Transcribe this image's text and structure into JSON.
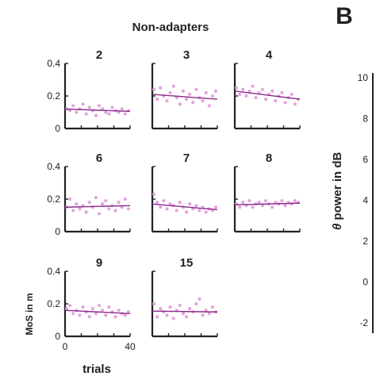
{
  "figure": {
    "title": "Non-adapters",
    "panel_b_letter": "B",
    "panel_b_ylabel_symbol": "θ",
    "panel_b_ylabel": " power in dB",
    "panel_b_ticks": [
      "10",
      "8",
      "6",
      "4",
      "2",
      "0",
      "-2"
    ]
  },
  "colors": {
    "axis": "#222222",
    "point": "#e3a3de",
    "fit_line": "#8b2a8b"
  },
  "chart_data": {
    "type": "scatter",
    "shared": {
      "ylim": [
        0,
        0.4
      ],
      "yticks": [
        0,
        0.2,
        0.4
      ],
      "ytick_labels": [
        "0",
        "0.2",
        "0.4"
      ],
      "xlim": [
        0,
        40
      ],
      "xticks": [
        0,
        40
      ],
      "xtick_labels": [
        "0",
        "40"
      ],
      "xlabel": "trials",
      "ylabel": "MoS in m"
    },
    "panels": [
      {
        "title": "2",
        "fit": [
          0.12,
          0.105
        ],
        "x": [
          1,
          3,
          5,
          7,
          9,
          11,
          13,
          15,
          17,
          19,
          21,
          23,
          25,
          27,
          29,
          31,
          33,
          35,
          37,
          39
        ],
        "y": [
          0.12,
          0.11,
          0.14,
          0.1,
          0.12,
          0.15,
          0.09,
          0.13,
          0.11,
          0.08,
          0.14,
          0.12,
          0.1,
          0.09,
          0.13,
          0.11,
          0.1,
          0.12,
          0.09,
          0.11
        ]
      },
      {
        "title": "3",
        "fit": [
          0.21,
          0.18
        ],
        "x": [
          1,
          3,
          5,
          7,
          9,
          11,
          13,
          15,
          17,
          19,
          21,
          23,
          25,
          27,
          29,
          31,
          33,
          35,
          37,
          39
        ],
        "y": [
          0.24,
          0.18,
          0.25,
          0.2,
          0.17,
          0.22,
          0.26,
          0.19,
          0.15,
          0.23,
          0.18,
          0.21,
          0.16,
          0.24,
          0.19,
          0.17,
          0.22,
          0.14,
          0.2,
          0.23
        ]
      },
      {
        "title": "4",
        "fit": [
          0.23,
          0.18
        ],
        "x": [
          1,
          3,
          5,
          7,
          9,
          11,
          13,
          15,
          17,
          19,
          21,
          23,
          25,
          27,
          29,
          31,
          33,
          35,
          37,
          39
        ],
        "y": [
          0.25,
          0.21,
          0.24,
          0.2,
          0.23,
          0.26,
          0.19,
          0.22,
          0.24,
          0.18,
          0.21,
          0.23,
          0.17,
          0.2,
          0.22,
          0.16,
          0.19,
          0.21,
          0.15,
          0.18
        ]
      },
      {
        "title": "6",
        "fit": [
          0.15,
          0.16
        ],
        "x": [
          1,
          3,
          5,
          7,
          9,
          11,
          13,
          15,
          17,
          19,
          21,
          23,
          25,
          27,
          29,
          31,
          33,
          35,
          37,
          39
        ],
        "y": [
          0.15,
          0.2,
          0.13,
          0.17,
          0.14,
          0.16,
          0.12,
          0.18,
          0.15,
          0.21,
          0.11,
          0.17,
          0.19,
          0.14,
          0.16,
          0.13,
          0.18,
          0.15,
          0.2,
          0.14
        ]
      },
      {
        "title": "7",
        "fit": [
          0.17,
          0.135
        ],
        "x": [
          1,
          3,
          5,
          7,
          9,
          11,
          13,
          15,
          17,
          19,
          21,
          23,
          25,
          27,
          29,
          31,
          33,
          35,
          37,
          39
        ],
        "y": [
          0.23,
          0.18,
          0.15,
          0.19,
          0.14,
          0.17,
          0.16,
          0.13,
          0.18,
          0.15,
          0.12,
          0.17,
          0.14,
          0.16,
          0.13,
          0.15,
          0.12,
          0.14,
          0.13,
          0.15
        ]
      },
      {
        "title": "8",
        "fit": [
          0.165,
          0.175
        ],
        "x": [
          1,
          3,
          5,
          7,
          9,
          11,
          13,
          15,
          17,
          19,
          21,
          23,
          25,
          27,
          29,
          31,
          33,
          35,
          37,
          39
        ],
        "y": [
          0.17,
          0.15,
          0.18,
          0.16,
          0.19,
          0.15,
          0.17,
          0.18,
          0.16,
          0.19,
          0.17,
          0.15,
          0.18,
          0.17,
          0.19,
          0.16,
          0.18,
          0.17,
          0.19,
          0.18
        ]
      },
      {
        "title": "9",
        "fit": [
          0.16,
          0.14
        ],
        "x": [
          1,
          3,
          5,
          7,
          9,
          11,
          13,
          15,
          17,
          19,
          21,
          23,
          25,
          27,
          29,
          31,
          33,
          35,
          37,
          39
        ],
        "y": [
          0.17,
          0.19,
          0.14,
          0.16,
          0.13,
          0.18,
          0.15,
          0.12,
          0.17,
          0.14,
          0.19,
          0.16,
          0.13,
          0.18,
          0.15,
          0.12,
          0.16,
          0.14,
          0.13,
          0.15
        ]
      },
      {
        "title": "15",
        "fit": [
          0.155,
          0.15
        ],
        "x": [
          1,
          3,
          5,
          7,
          9,
          11,
          13,
          15,
          17,
          19,
          21,
          23,
          25,
          27,
          29,
          31,
          33,
          35,
          37,
          39
        ],
        "y": [
          0.2,
          0.12,
          0.17,
          0.15,
          0.13,
          0.18,
          0.11,
          0.16,
          0.19,
          0.14,
          0.12,
          0.17,
          0.15,
          0.2,
          0.23,
          0.13,
          0.16,
          0.14,
          0.18,
          0.15
        ]
      }
    ]
  }
}
